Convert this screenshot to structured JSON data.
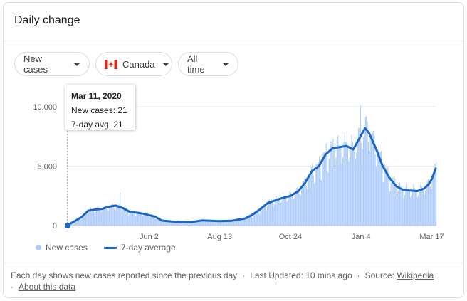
{
  "card": {
    "title": "Daily change"
  },
  "filters": {
    "metric": "New cases",
    "country": "Canada",
    "range": "All time"
  },
  "tooltip": {
    "date": "Mar 11, 2020",
    "new_cases": "New cases: 21",
    "avg": "7-day avg: 21"
  },
  "legend": {
    "bars": "New cases",
    "line": "7-day average"
  },
  "footer": {
    "note": "Each day shows new cases reported since the previous day",
    "updated": "Last Updated: 10 mins ago",
    "source_label": "Source:",
    "source_link": "Wikipedia",
    "about": "About this data"
  },
  "colors": {
    "bars": "#aecbfa",
    "line": "#1a66c8",
    "flag_red": "#d52b1e"
  },
  "chart_data": {
    "type": "bar",
    "title": "",
    "xlabel": "",
    "ylabel": "",
    "x_tick_labels": [
      "Jun 2",
      "Aug 13",
      "Oct 24",
      "Jan 4",
      "Mar 17"
    ],
    "y_tick_labels": [
      "10,000",
      "5,000",
      "0"
    ],
    "ylim": [
      0,
      10000
    ],
    "xlim": [
      "2020-03-11",
      "2021-03-21"
    ],
    "grid": true,
    "series": [
      {
        "name": "7-day average",
        "type": "line",
        "points": [
          [
            "2020-03-11",
            21
          ],
          [
            "2020-03-25",
            700
          ],
          [
            "2020-04-01",
            1250
          ],
          [
            "2020-04-08",
            1350
          ],
          [
            "2020-04-15",
            1400
          ],
          [
            "2020-04-22",
            1580
          ],
          [
            "2020-04-29",
            1680
          ],
          [
            "2020-05-06",
            1480
          ],
          [
            "2020-05-13",
            1170
          ],
          [
            "2020-05-27",
            1000
          ],
          [
            "2020-06-08",
            750
          ],
          [
            "2020-06-15",
            420
          ],
          [
            "2020-06-29",
            310
          ],
          [
            "2020-07-13",
            270
          ],
          [
            "2020-07-26",
            430
          ],
          [
            "2020-08-03",
            410
          ],
          [
            "2020-08-13",
            380
          ],
          [
            "2020-08-25",
            400
          ],
          [
            "2020-09-01",
            500
          ],
          [
            "2020-09-08",
            600
          ],
          [
            "2020-09-15",
            900
          ],
          [
            "2020-09-22",
            1300
          ],
          [
            "2020-10-01",
            1900
          ],
          [
            "2020-10-08",
            2100
          ],
          [
            "2020-10-15",
            2300
          ],
          [
            "2020-10-24",
            2500
          ],
          [
            "2020-11-01",
            2900
          ],
          [
            "2020-11-08",
            3600
          ],
          [
            "2020-11-15",
            4600
          ],
          [
            "2020-11-22",
            5000
          ],
          [
            "2020-11-29",
            6000
          ],
          [
            "2020-12-06",
            6500
          ],
          [
            "2020-12-13",
            6600
          ],
          [
            "2020-12-20",
            6700
          ],
          [
            "2020-12-27",
            6400
          ],
          [
            "2021-01-04",
            7600
          ],
          [
            "2021-01-08",
            8200
          ],
          [
            "2021-01-12",
            7800
          ],
          [
            "2021-01-19",
            6500
          ],
          [
            "2021-01-26",
            5000
          ],
          [
            "2021-02-02",
            4000
          ],
          [
            "2021-02-09",
            3300
          ],
          [
            "2021-02-16",
            3000
          ],
          [
            "2021-02-23",
            2950
          ],
          [
            "2021-03-02",
            2900
          ],
          [
            "2021-03-09",
            3100
          ],
          [
            "2021-03-14",
            3500
          ],
          [
            "2021-03-17",
            3900
          ],
          [
            "2021-03-21",
            4800
          ]
        ]
      }
    ],
    "bars_series_name": "New cases"
  }
}
